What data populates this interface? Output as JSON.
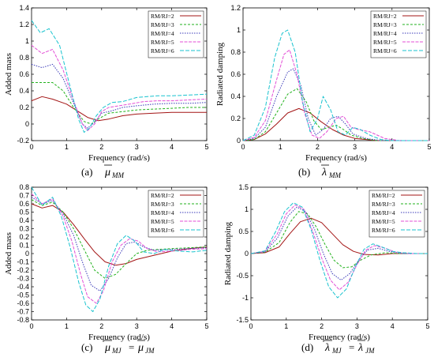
{
  "colors": {
    "s2": "#a31515",
    "s3": "#22b21d",
    "s4": "#3a3ab8",
    "s5": "#e34fd6",
    "s6": "#19c3cf"
  },
  "series_names": [
    "R_M/R_J=2",
    "R_M/R_J=3",
    "R_M/R_J=4",
    "R_M/R_J=5",
    "R_M/R_J=6"
  ],
  "chart_data": [
    {
      "type": "line",
      "panel": "a",
      "caption_letter": "(a)",
      "caption_symbol": "μ",
      "caption_sub": "MM",
      "xlabel": "Frequency (rad/s)",
      "ylabel": "Added mass",
      "xlim": [
        0,
        5
      ],
      "ylim": [
        -0.2,
        1.4
      ],
      "xticks": [
        "0",
        "1",
        "2",
        "3",
        "4",
        "5"
      ],
      "yticks": [
        "-0.2",
        "0",
        "0.2",
        "0.4",
        "0.6",
        "0.8",
        "1",
        "1.2",
        "1.4"
      ],
      "legend": "top-right",
      "series": [
        {
          "name": "RM/RJ=2",
          "x": [
            0,
            0.3,
            0.6,
            1,
            1.3,
            1.6,
            1.9,
            2.2,
            2.6,
            3,
            3.5,
            4,
            4.5,
            5
          ],
          "y": [
            0.28,
            0.33,
            0.3,
            0.24,
            0.16,
            0.08,
            0.04,
            0.06,
            0.1,
            0.12,
            0.13,
            0.14,
            0.14,
            0.14
          ]
        },
        {
          "name": "RM/RJ=3",
          "x": [
            0,
            0.3,
            0.6,
            0.9,
            1.2,
            1.5,
            1.7,
            1.9,
            2.2,
            2.6,
            3,
            3.5,
            4,
            4.5,
            5
          ],
          "y": [
            0.5,
            0.5,
            0.5,
            0.4,
            0.2,
            0.03,
            0.0,
            0.06,
            0.13,
            0.15,
            0.17,
            0.18,
            0.19,
            0.2,
            0.2
          ]
        },
        {
          "name": "RM/RJ=4",
          "x": [
            0,
            0.3,
            0.6,
            0.9,
            1.2,
            1.45,
            1.6,
            1.8,
            2.0,
            2.3,
            2.6,
            3,
            3.5,
            4,
            4.5,
            5
          ],
          "y": [
            0.72,
            0.68,
            0.72,
            0.55,
            0.25,
            0.0,
            -0.05,
            0.02,
            0.13,
            0.16,
            0.2,
            0.22,
            0.24,
            0.25,
            0.25,
            0.26
          ]
        },
        {
          "name": "RM/RJ=5",
          "x": [
            0,
            0.3,
            0.6,
            0.9,
            1.2,
            1.45,
            1.6,
            1.8,
            2.0,
            2.2,
            2.5,
            2.8,
            3.2,
            3.6,
            4,
            4.5,
            5
          ],
          "y": [
            0.95,
            0.85,
            0.9,
            0.65,
            0.28,
            0.0,
            -0.08,
            0.0,
            0.15,
            0.2,
            0.22,
            0.24,
            0.27,
            0.28,
            0.28,
            0.29,
            0.3
          ]
        },
        {
          "name": "RM/RJ=6",
          "x": [
            0,
            0.25,
            0.5,
            0.8,
            1.1,
            1.35,
            1.5,
            1.65,
            1.85,
            2.05,
            2.3,
            2.6,
            3,
            3.3,
            3.6,
            4,
            4.5,
            5
          ],
          "y": [
            1.25,
            1.1,
            1.15,
            0.95,
            0.45,
            0.05,
            -0.1,
            -0.05,
            0.1,
            0.2,
            0.26,
            0.27,
            0.32,
            0.33,
            0.34,
            0.34,
            0.35,
            0.36
          ]
        }
      ]
    },
    {
      "type": "line",
      "panel": "b",
      "caption_letter": "(b)",
      "caption_symbol": "λ",
      "caption_sub": "MM",
      "xlabel": "Frequency (rad/s)",
      "ylabel": "Radiated damping",
      "xlim": [
        0,
        5
      ],
      "ylim": [
        0,
        1.2
      ],
      "xticks": [
        "0",
        "1",
        "2",
        "3",
        "4",
        "5"
      ],
      "yticks": [
        "0",
        "0.2",
        "0.4",
        "0.6",
        "0.8",
        "1",
        "1.2"
      ],
      "legend": "top-right",
      "series": [
        {
          "name": "RM/RJ=2",
          "x": [
            0,
            0.3,
            0.6,
            0.9,
            1.2,
            1.5,
            1.8,
            2.1,
            2.4,
            2.7,
            3,
            3.3,
            3.6,
            4,
            4.5,
            5
          ],
          "y": [
            0,
            0.01,
            0.06,
            0.15,
            0.25,
            0.29,
            0.25,
            0.17,
            0.1,
            0.05,
            0.02,
            0.01,
            0.0,
            0.0,
            0,
            0
          ]
        },
        {
          "name": "RM/RJ=3",
          "x": [
            0,
            0.3,
            0.6,
            0.9,
            1.2,
            1.45,
            1.7,
            1.9,
            2.1,
            2.3,
            2.5,
            2.7,
            2.9,
            3.2,
            3.6,
            4,
            5
          ],
          "y": [
            0,
            0.01,
            0.08,
            0.25,
            0.42,
            0.47,
            0.35,
            0.18,
            0.1,
            0.12,
            0.14,
            0.1,
            0.05,
            0.02,
            0.0,
            0,
            0
          ]
        },
        {
          "name": "RM/RJ=4",
          "x": [
            0,
            0.3,
            0.6,
            0.9,
            1.2,
            1.35,
            1.55,
            1.75,
            1.95,
            2.15,
            2.35,
            2.55,
            2.75,
            2.95,
            3.3,
            3.7,
            4,
            5
          ],
          "y": [
            0,
            0.02,
            0.12,
            0.4,
            0.62,
            0.65,
            0.5,
            0.2,
            0.05,
            0.1,
            0.2,
            0.22,
            0.15,
            0.06,
            0.02,
            0.0,
            0,
            0
          ]
        },
        {
          "name": "RM/RJ=5",
          "x": [
            0,
            0.3,
            0.6,
            0.9,
            1.1,
            1.25,
            1.45,
            1.65,
            1.85,
            2.05,
            2.25,
            2.5,
            2.7,
            2.9,
            3.1,
            3.4,
            3.8,
            4.2,
            5
          ],
          "y": [
            0,
            0.03,
            0.18,
            0.55,
            0.78,
            0.82,
            0.6,
            0.25,
            0.05,
            0.02,
            0.08,
            0.2,
            0.22,
            0.12,
            0.1,
            0.08,
            0.02,
            0,
            0
          ]
        },
        {
          "name": "RM/RJ=6",
          "x": [
            0,
            0.3,
            0.6,
            0.85,
            1.05,
            1.2,
            1.4,
            1.6,
            1.8,
            2.0,
            2.15,
            2.35,
            2.55,
            2.75,
            2.95,
            3.15,
            3.4,
            3.7,
            4,
            5
          ],
          "y": [
            0,
            0.05,
            0.3,
            0.75,
            0.97,
            1.0,
            0.8,
            0.35,
            0.08,
            0.2,
            0.4,
            0.28,
            0.08,
            0.05,
            0.12,
            0.1,
            0.05,
            0.01,
            0,
            0
          ]
        }
      ]
    },
    {
      "type": "line",
      "panel": "c",
      "caption_letter": "(c)",
      "caption_symbol": "μ",
      "caption_sub": "MJ",
      "caption_eq_symbol": "μ",
      "caption_eq_sub": "JM",
      "xlabel": "Frequency (rad/s)",
      "ylabel": "Added mass",
      "xlim": [
        0,
        5
      ],
      "ylim": [
        -0.8,
        0.8
      ],
      "xticks": [
        "0",
        "1",
        "2",
        "3",
        "4",
        "5"
      ],
      "yticks": [
        "-0.8",
        "-0.7",
        "-0.6",
        "-0.5",
        "-0.4",
        "-0.3",
        "-0.2",
        "-0.1",
        "0",
        "0.1",
        "0.2",
        "0.3",
        "0.4",
        "0.5",
        "0.6",
        "0.7",
        "0.8"
      ],
      "legend": "top-right",
      "series": [
        {
          "name": "RM/RJ=2",
          "x": [
            0,
            0.3,
            0.6,
            0.9,
            1.2,
            1.5,
            1.8,
            2.1,
            2.4,
            2.7,
            3,
            3.5,
            4,
            4.5,
            5
          ],
          "y": [
            0.6,
            0.55,
            0.58,
            0.5,
            0.35,
            0.18,
            0.02,
            -0.1,
            -0.14,
            -0.12,
            -0.07,
            -0.02,
            0.03,
            0.06,
            0.08
          ]
        },
        {
          "name": "RM/RJ=3",
          "x": [
            0,
            0.3,
            0.6,
            0.9,
            1.2,
            1.5,
            1.8,
            2.1,
            2.4,
            2.7,
            3,
            3.3,
            3.6,
            4,
            4.5,
            5
          ],
          "y": [
            0.65,
            0.58,
            0.62,
            0.5,
            0.3,
            0.05,
            -0.2,
            -0.3,
            -0.25,
            -0.12,
            0.0,
            0.04,
            0.05,
            0.06,
            0.07,
            0.08
          ]
        },
        {
          "name": "RM/RJ=4",
          "x": [
            0,
            0.3,
            0.6,
            0.9,
            1.2,
            1.45,
            1.7,
            1.95,
            2.2,
            2.45,
            2.7,
            2.95,
            3.2,
            3.5,
            4,
            4.5,
            5
          ],
          "y": [
            0.68,
            0.6,
            0.64,
            0.48,
            0.22,
            -0.1,
            -0.38,
            -0.45,
            -0.3,
            -0.05,
            0.12,
            0.14,
            0.08,
            0.04,
            0.05,
            0.06,
            0.07
          ]
        },
        {
          "name": "RM/RJ=5",
          "x": [
            0,
            0.3,
            0.6,
            0.9,
            1.15,
            1.4,
            1.6,
            1.85,
            2.05,
            2.3,
            2.55,
            2.8,
            3.05,
            3.3,
            3.6,
            4,
            4.5,
            5
          ],
          "y": [
            0.72,
            0.6,
            0.66,
            0.45,
            0.15,
            -0.25,
            -0.52,
            -0.6,
            -0.45,
            -0.1,
            0.1,
            0.18,
            0.15,
            0.06,
            0.02,
            0.03,
            0.05,
            0.06
          ]
        },
        {
          "name": "RM/RJ=6",
          "x": [
            0,
            0.3,
            0.6,
            0.85,
            1.1,
            1.35,
            1.55,
            1.75,
            1.95,
            2.2,
            2.45,
            2.7,
            2.95,
            3.2,
            3.5,
            3.8,
            4.2,
            4.6,
            5
          ],
          "y": [
            0.8,
            0.58,
            0.68,
            0.45,
            0.08,
            -0.35,
            -0.62,
            -0.7,
            -0.55,
            -0.15,
            0.12,
            0.22,
            0.15,
            0.02,
            0.0,
            0.05,
            0.03,
            0.02,
            0.04
          ]
        }
      ]
    },
    {
      "type": "line",
      "panel": "d",
      "caption_letter": "(d)",
      "caption_symbol": "λ",
      "caption_sub": "MJ",
      "caption_eq_symbol": "λ",
      "caption_eq_sub": "JM",
      "xlabel": "Frequency (rad/s)",
      "ylabel": "Radiated damping",
      "xlim": [
        0,
        5
      ],
      "ylim": [
        -1.5,
        1.5
      ],
      "xticks": [
        "0",
        "1",
        "2",
        "3",
        "4",
        "5"
      ],
      "yticks": [
        "-1.5",
        "-1",
        "-0.5",
        "0",
        "0.5",
        "1",
        "1.5"
      ],
      "legend": "top-right",
      "series": [
        {
          "name": "RM/RJ=2",
          "x": [
            0,
            0.4,
            0.8,
            1.1,
            1.4,
            1.7,
            2.0,
            2.3,
            2.6,
            2.9,
            3.2,
            3.6,
            4,
            4.5,
            5
          ],
          "y": [
            0,
            0.02,
            0.15,
            0.45,
            0.72,
            0.8,
            0.7,
            0.45,
            0.2,
            0.05,
            -0.02,
            -0.03,
            0,
            0,
            0
          ]
        },
        {
          "name": "RM/RJ=3",
          "x": [
            0,
            0.4,
            0.8,
            1.1,
            1.35,
            1.6,
            1.85,
            2.1,
            2.35,
            2.6,
            2.85,
            3.1,
            3.4,
            3.8,
            4.2,
            5
          ],
          "y": [
            0,
            0.03,
            0.25,
            0.7,
            0.95,
            0.9,
            0.6,
            0.2,
            -0.15,
            -0.32,
            -0.3,
            -0.15,
            -0.03,
            0.02,
            0,
            0
          ]
        },
        {
          "name": "RM/RJ=4",
          "x": [
            0,
            0.4,
            0.75,
            1.05,
            1.3,
            1.55,
            1.8,
            2.05,
            2.3,
            2.55,
            2.8,
            3.05,
            3.3,
            3.6,
            3.9,
            4.3,
            5
          ],
          "y": [
            0,
            0.04,
            0.35,
            0.85,
            1.05,
            0.95,
            0.55,
            0.0,
            -0.45,
            -0.6,
            -0.45,
            -0.15,
            0.08,
            0.12,
            0.05,
            0,
            0
          ]
        },
        {
          "name": "RM/RJ=5",
          "x": [
            0,
            0.4,
            0.75,
            1.0,
            1.25,
            1.5,
            1.75,
            2.0,
            2.25,
            2.5,
            2.75,
            3.0,
            3.25,
            3.5,
            3.8,
            4.1,
            4.5,
            5
          ],
          "y": [
            0,
            0.05,
            0.45,
            0.9,
            1.1,
            1.0,
            0.5,
            -0.1,
            -0.6,
            -0.82,
            -0.65,
            -0.25,
            0.08,
            0.18,
            0.12,
            0.03,
            0,
            0
          ]
        },
        {
          "name": "RM/RJ=6",
          "x": [
            0,
            0.4,
            0.7,
            0.95,
            1.2,
            1.45,
            1.7,
            1.95,
            2.2,
            2.45,
            2.7,
            2.95,
            3.2,
            3.45,
            3.7,
            4.0,
            4.3,
            4.7,
            5
          ],
          "y": [
            0,
            0.06,
            0.5,
            0.95,
            1.15,
            1.05,
            0.55,
            -0.15,
            -0.75,
            -1.0,
            -0.8,
            -0.3,
            0.1,
            0.22,
            0.15,
            0.05,
            0.02,
            0,
            0
          ]
        }
      ]
    }
  ]
}
